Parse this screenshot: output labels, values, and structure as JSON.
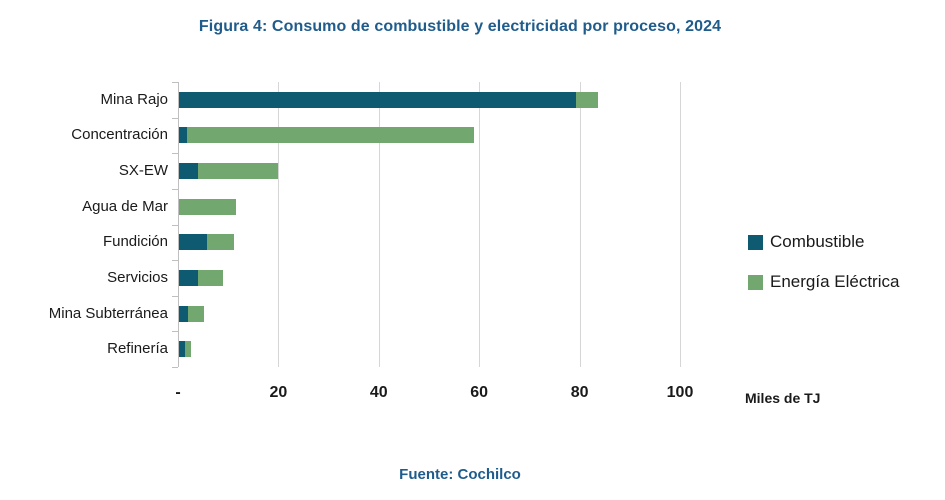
{
  "figure": {
    "title": "Figura 4: Consumo de combustible y electricidad por proceso, 2024",
    "source": "Fuente: Cochilco",
    "axis_unit_label": "Miles de TJ"
  },
  "chart_data": {
    "type": "bar",
    "orientation": "horizontal",
    "stacked": true,
    "title": "Figura 4: Consumo de combustible y electricidad por proceso, 2024",
    "xlabel": "Miles de TJ",
    "ylabel": "",
    "categories": [
      "Mina Rajo",
      "Concentración",
      "SX-EW",
      "Agua de Mar",
      "Fundición",
      "Servicios",
      "Mina Subterránea",
      "Refinería"
    ],
    "series": [
      {
        "name": "Combustible",
        "color": "#0d5a71",
        "values": [
          79,
          1.6,
          3.7,
          0,
          5.6,
          3.8,
          1.7,
          1.2
        ]
      },
      {
        "name": "Energía Eléctrica",
        "color": "#72a86f",
        "values": [
          4.5,
          57.2,
          16.1,
          11.3,
          5.4,
          5.0,
          3.2,
          1.2
        ]
      }
    ],
    "xlim": [
      0,
      100
    ],
    "xticks": {
      "values": [
        0,
        20,
        40,
        60,
        80,
        100
      ],
      "labels": [
        "-",
        "20",
        "40",
        "60",
        "80",
        "100"
      ]
    },
    "grid": "vertical-gridlines-every-20",
    "legend_position": "right",
    "gridline_color": "#d6d6d6",
    "axis_color": "#bfbfbf"
  }
}
